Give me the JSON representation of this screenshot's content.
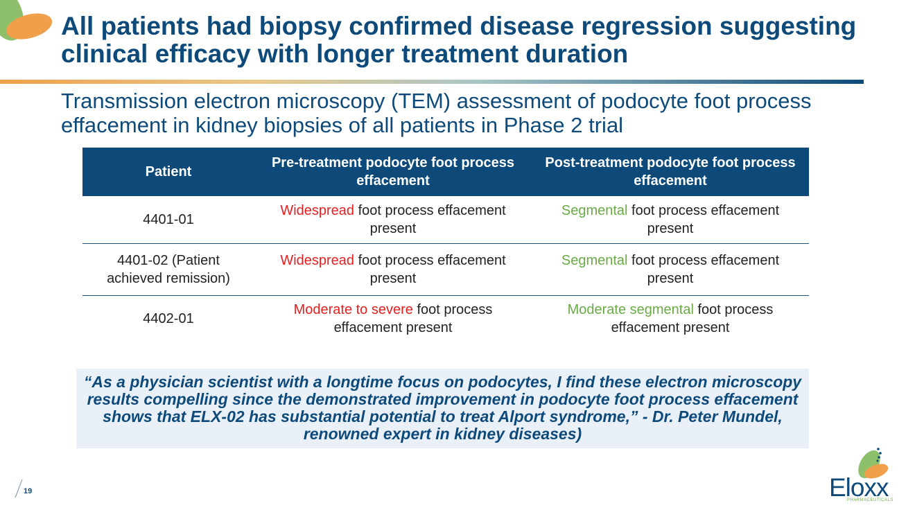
{
  "title": "All patients had biopsy confirmed disease regression suggesting clinical efficacy with longer treatment duration",
  "subtitle": "Transmission electron microscopy (TEM) assessment of podocyte foot process effacement in kidney biopsies of all patients in Phase 2 trial",
  "table": {
    "headers": [
      "Patient",
      "Pre-treatment podocyte foot process effacement",
      "Post-treatment podocyte foot process effacement"
    ],
    "rows": [
      {
        "patient": "4401-01",
        "pre_hl": "Widespread",
        "pre_rest": " foot process effacement present",
        "post_hl": "Segmental",
        "post_rest": " foot process effacement present"
      },
      {
        "patient": "4401-02 (Patient achieved remission)",
        "pre_hl": "Widespread",
        "pre_rest": " foot process effacement present",
        "post_hl": "Segmental",
        "post_rest": " foot process effacement present"
      },
      {
        "patient": "4402-01",
        "pre_hl": "Moderate to severe",
        "pre_rest": " foot process effacement present",
        "post_hl": "Moderate segmental",
        "post_rest": " foot process effacement present"
      }
    ]
  },
  "quote": "“As a physician scientist with a longtime focus on podocytes, I find these electron microscopy results compelling since the demonstrated improvement in podocyte foot process effacement shows that ELX-02 has substantial potential to treat Alport syndrome,” - Dr. Peter Mundel, renowned expert in kidney diseases)",
  "page_number": "19",
  "brand": {
    "name": "Eloxx",
    "subtitle": "PHARMACEUTICALS"
  },
  "colors": {
    "primary": "#0d4a7a",
    "negative": "#e52020",
    "positive": "#6aab45",
    "accent": "#f0a04a",
    "quote_bg": "#e9f0f8"
  }
}
